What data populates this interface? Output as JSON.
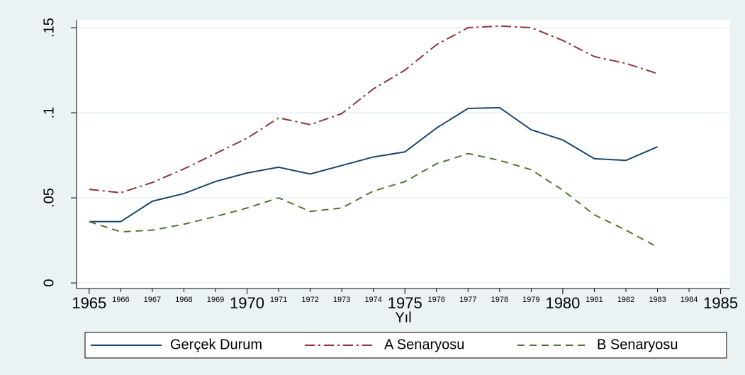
{
  "chart_data": {
    "type": "line",
    "x_label": "Yıl",
    "x": [
      1965,
      1966,
      1967,
      1968,
      1969,
      1970,
      1971,
      1972,
      1973,
      1974,
      1975,
      1976,
      1977,
      1978,
      1979,
      1980,
      1981,
      1982,
      1983
    ],
    "series": [
      {
        "name": "Gerçek Durum",
        "color": "#1a476f",
        "dash": "solid",
        "values": [
          0.036,
          0.036,
          0.048,
          0.0525,
          0.0596,
          0.0646,
          0.068,
          0.064,
          0.069,
          0.074,
          0.077,
          0.091,
          0.1025,
          0.103,
          0.09,
          0.084,
          0.073,
          0.072,
          0.08
        ]
      },
      {
        "name": "A Senaryosu",
        "color": "#90353b",
        "dash": "dash-dot",
        "values": [
          0.055,
          0.053,
          0.059,
          0.067,
          0.076,
          0.085,
          0.097,
          0.093,
          0.0995,
          0.114,
          0.125,
          0.14,
          0.15,
          0.151,
          0.15,
          0.1425,
          0.133,
          0.129,
          0.123
        ]
      },
      {
        "name": "B Senaryosu",
        "color": "#55752f",
        "dash": "dash",
        "values": [
          0.036,
          0.03,
          0.031,
          0.0345,
          0.039,
          0.044,
          0.05,
          0.042,
          0.044,
          0.054,
          0.0595,
          0.07,
          0.076,
          0.072,
          0.0665,
          0.0545,
          0.04,
          0.031,
          0.021
        ]
      }
    ],
    "xlim": [
      1964.6,
      1985.3
    ],
    "xticks": [
      1965,
      1970,
      1975,
      1980,
      1985
    ],
    "xminor_ticks": [
      1966,
      1967,
      1968,
      1969,
      1971,
      1972,
      1973,
      1974,
      1976,
      1977,
      1978,
      1979,
      1981,
      1982,
      1983,
      1984
    ],
    "ylim": [
      -0.0033,
      0.1546
    ],
    "yticks": [
      0,
      {
        "value": 0.05,
        "label": ".05"
      },
      {
        "value": 0.1,
        "label": ".1"
      },
      {
        "value": 0.15,
        "label": ".15"
      }
    ],
    "grid": true,
    "legend": "bottom"
  }
}
